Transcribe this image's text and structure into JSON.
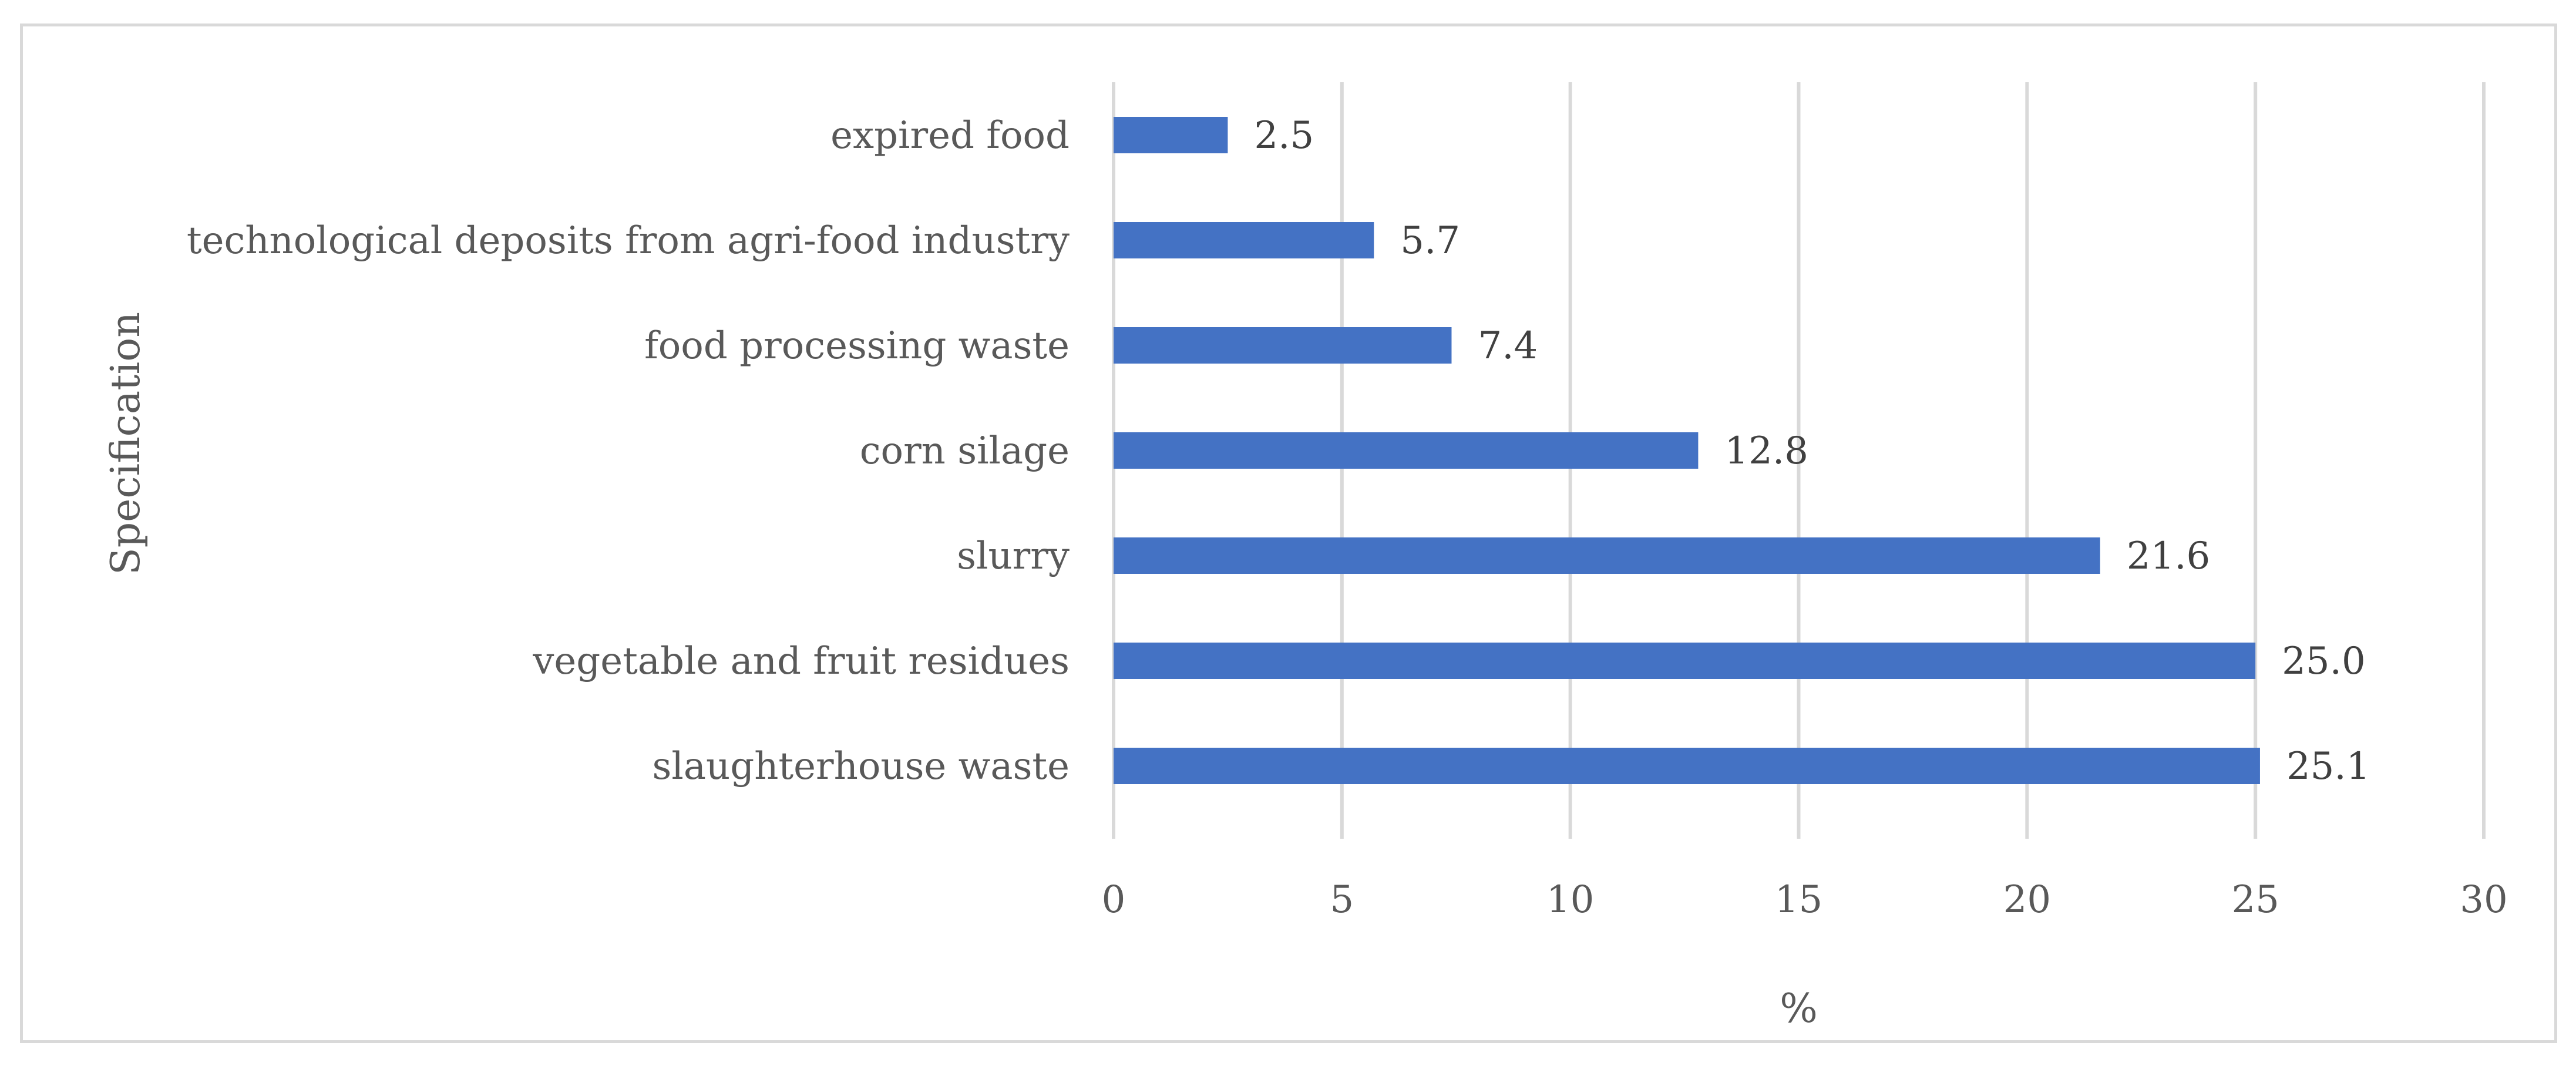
{
  "chart_data": {
    "type": "bar",
    "orientation": "horizontal",
    "title": "",
    "xlabel": "%",
    "ylabel": "Specification",
    "xlim": [
      0,
      30
    ],
    "xticks": [
      0,
      5,
      10,
      15,
      20,
      25,
      30
    ],
    "xtick_labels": [
      "0",
      "5",
      "10",
      "15",
      "20",
      "25",
      "30"
    ],
    "grid": "vertical",
    "legend": "none",
    "bar_color": "#4472c4",
    "categories": [
      "expired food",
      "technological deposits from agri-food industry",
      "food processing waste",
      "corn silage",
      "slurry",
      "vegetable and fruit residues",
      "slaughterhouse waste"
    ],
    "values": [
      2.5,
      5.7,
      7.4,
      12.8,
      21.6,
      25.0,
      25.1
    ],
    "value_labels": [
      "2.5",
      "5.7",
      "7.4",
      "12.8",
      "21.6",
      "25.0",
      "25.1"
    ]
  }
}
